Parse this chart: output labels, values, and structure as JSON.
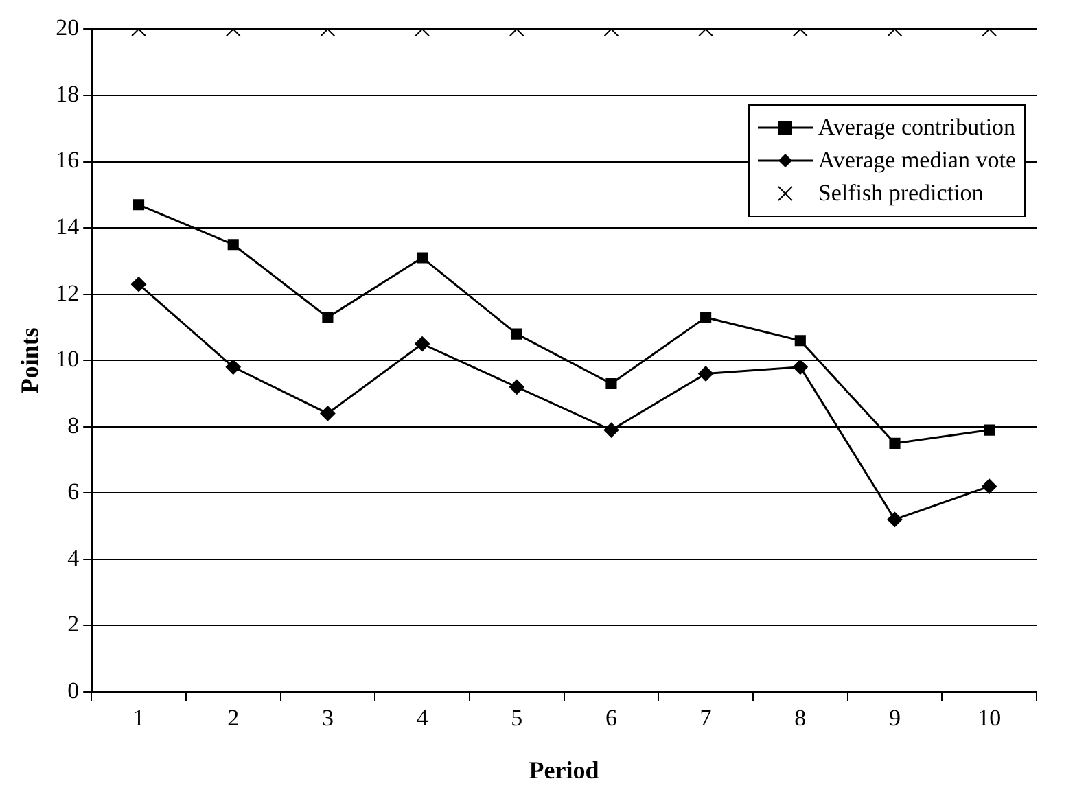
{
  "chart_data": {
    "type": "line",
    "xlabel": "Period",
    "ylabel": "Points",
    "categories": [
      "1",
      "2",
      "3",
      "4",
      "5",
      "6",
      "7",
      "8",
      "9",
      "10"
    ],
    "ylim": [
      0,
      20
    ],
    "yticks": [
      0,
      2,
      4,
      6,
      8,
      10,
      12,
      14,
      16,
      18,
      20
    ],
    "grid": "y",
    "legend": "top right",
    "series": [
      {
        "name": "Average contribution",
        "color": "#000000",
        "marker": "square",
        "values": [
          14.7,
          13.5,
          11.3,
          13.1,
          10.8,
          9.3,
          11.3,
          10.6,
          7.5,
          7.9
        ]
      },
      {
        "name": "Average median vote",
        "color": "#000000",
        "marker": "diamond",
        "values": [
          12.3,
          9.8,
          8.4,
          10.5,
          9.2,
          7.9,
          9.6,
          9.8,
          5.2,
          6.2
        ]
      },
      {
        "name": "Selfish prediction",
        "type": "scatter",
        "color": "#000000",
        "marker": "cross",
        "values": [
          20,
          20,
          20,
          20,
          20,
          20,
          20,
          20,
          20,
          20
        ]
      }
    ]
  }
}
